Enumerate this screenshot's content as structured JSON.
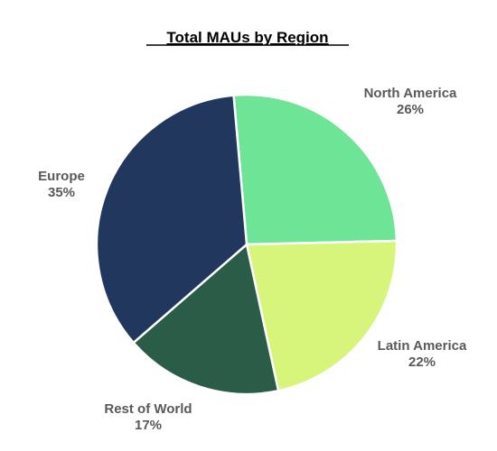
{
  "chart_data": {
    "type": "pie",
    "title": "Total MAUs by Region",
    "slices": [
      {
        "label": "North America",
        "value": 26,
        "value_label": "26%",
        "color": "#6ee596"
      },
      {
        "label": "Latin America",
        "value": 22,
        "value_label": "22%",
        "color": "#d8f57b"
      },
      {
        "label": "Rest of World",
        "value": 17,
        "value_label": "17%",
        "color": "#2b5c48"
      },
      {
        "label": "Europe",
        "value": 35,
        "value_label": "35%",
        "color": "#22375d"
      }
    ],
    "slice_border_color": "#ffffff",
    "legend": "none"
  }
}
